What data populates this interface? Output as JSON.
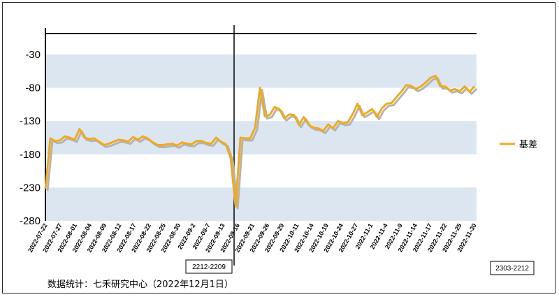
{
  "chart_data": {
    "type": "line",
    "y_ticks": [
      -30,
      -80,
      -130,
      -180,
      -230,
      -280
    ],
    "ylim": [
      -280,
      20
    ],
    "x_tick_labels": [
      "2022-07-22",
      "2022-07-27",
      "2022-08-01",
      "2022-08-04",
      "2022-08-09",
      "2022-08-12",
      "2022-08-17",
      "2022-08-22",
      "2022-08-25",
      "2022-08-30",
      "2022-09-2",
      "2022-09-7",
      "2022-09-13",
      "2022-09-16",
      "2022-09-21",
      "2022-09-26",
      "2022-09-29",
      "2022-10-11",
      "2022-10-14",
      "2022-10-19",
      "2022-10-24",
      "2022-10-27",
      "2022-11-1",
      "2022-11-4",
      "2022-11-9",
      "2022-11-14",
      "2022-11-17",
      "2022-11-22",
      "2022-11-25",
      "2022-11-30"
    ],
    "series": [
      {
        "name": "基差",
        "color": "#f0aa1e",
        "values": [
          -232,
          -156,
          -160,
          -159,
          -153,
          -155,
          -158,
          -142,
          -155,
          -157,
          -156,
          -161,
          -166,
          -164,
          -161,
          -158,
          -159,
          -161,
          -154,
          -158,
          -153,
          -156,
          -162,
          -166,
          -166,
          -165,
          -164,
          -167,
          -162,
          -164,
          -165,
          -160,
          -160,
          -163,
          -164,
          -155,
          -161,
          -165,
          -186,
          -258,
          -155,
          -156,
          -156,
          -140,
          -80,
          -123,
          -121,
          -109,
          -112,
          -126,
          -120,
          -121,
          -136,
          -124,
          -136,
          -140,
          -141,
          -145,
          -135,
          -141,
          -130,
          -133,
          -132,
          -120,
          -104,
          -121,
          -117,
          -112,
          -124,
          -111,
          -104,
          -103,
          -94,
          -86,
          -76,
          -77,
          -82,
          -78,
          -72,
          -65,
          -62,
          -78,
          -78,
          -84,
          -82,
          -85,
          -78,
          -86,
          -78
        ]
      }
    ],
    "grid": "horizontal bands",
    "legend": "right"
  },
  "annotations": {
    "contract_left": "2212-2209",
    "contract_right": "2303-2212"
  },
  "source": "数据统计：七禾研究中心（2022年12月1日）"
}
